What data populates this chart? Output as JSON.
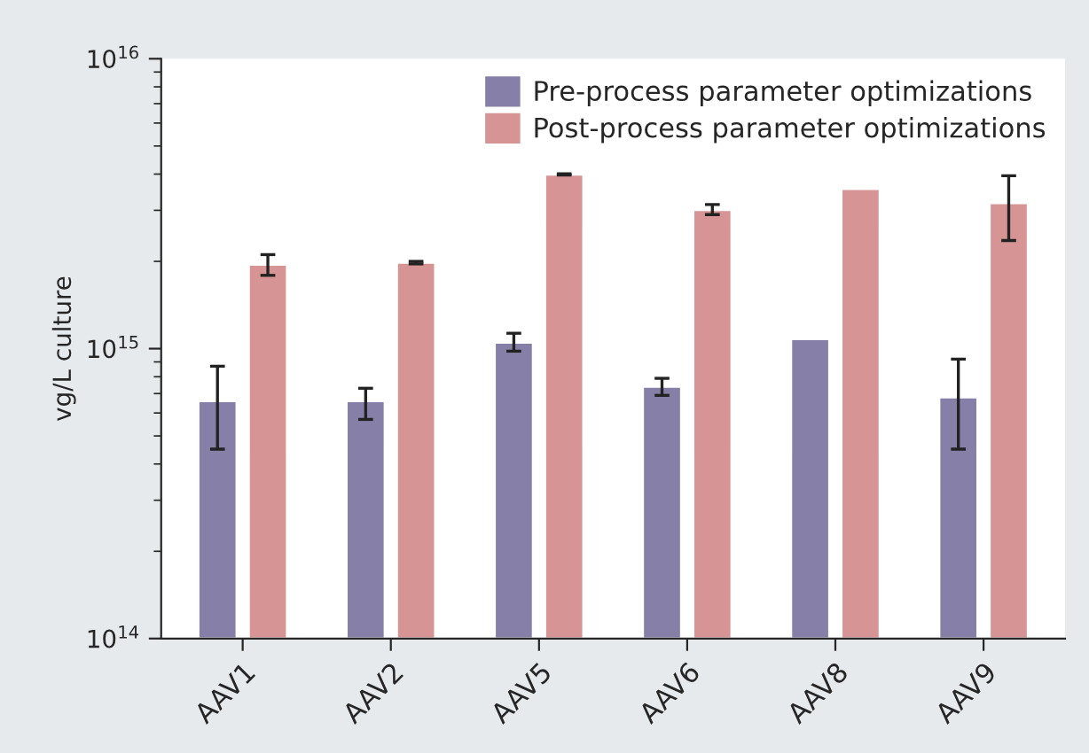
{
  "chart_data": {
    "type": "bar",
    "ylabel": "vg/L culture",
    "log": "y",
    "categories": [
      "AAV1",
      "AAV2",
      "AAV5",
      "AAV6",
      "AAV8",
      "AAV9"
    ],
    "series": [
      {
        "name": "Pre-process parameter optimizations",
        "color": "#8680a8",
        "values": [
          660000000000000.0,
          660000000000000.0,
          1050000000000000.0,
          740000000000000.0,
          1080000000000000.0,
          680000000000000.0
        ],
        "errors": [
          [
            450000000000000.0,
            870000000000000.0
          ],
          [
            570000000000000.0,
            730000000000000.0
          ],
          [
            980000000000000.0,
            1130000000000000.0
          ],
          [
            690000000000000.0,
            790000000000000.0
          ],
          null,
          [
            450000000000000.0,
            920000000000000.0
          ]
        ]
      },
      {
        "name": "Post-process parameter optimizations",
        "color": "#d69494",
        "values": [
          1950000000000000.0,
          1980000000000000.0,
          3990000000000000.0,
          3010000000000000.0,
          3560000000000000.0,
          3180000000000000.0
        ],
        "errors": [
          [
            1790000000000000.0,
            2110000000000000.0
          ],
          [
            1960000000000000.0,
            2000000000000000.0
          ],
          [
            3970000000000000.0,
            4010000000000000.0
          ],
          [
            2900000000000000.0,
            3140000000000000.0
          ],
          null,
          [
            2360000000000000.0,
            3950000000000000.0
          ]
        ]
      }
    ],
    "ylim": [
      100000000000000.0,
      1e+16
    ],
    "yticks": [
      {
        "value": 100000000000000.0,
        "label": "10$^{14}$"
      },
      {
        "value": 1000000000000000.0,
        "label": "10$^{15}$"
      },
      {
        "value": 1e+16,
        "label": "10$^{16}$"
      }
    ],
    "legend": "top right",
    "grid": false
  }
}
